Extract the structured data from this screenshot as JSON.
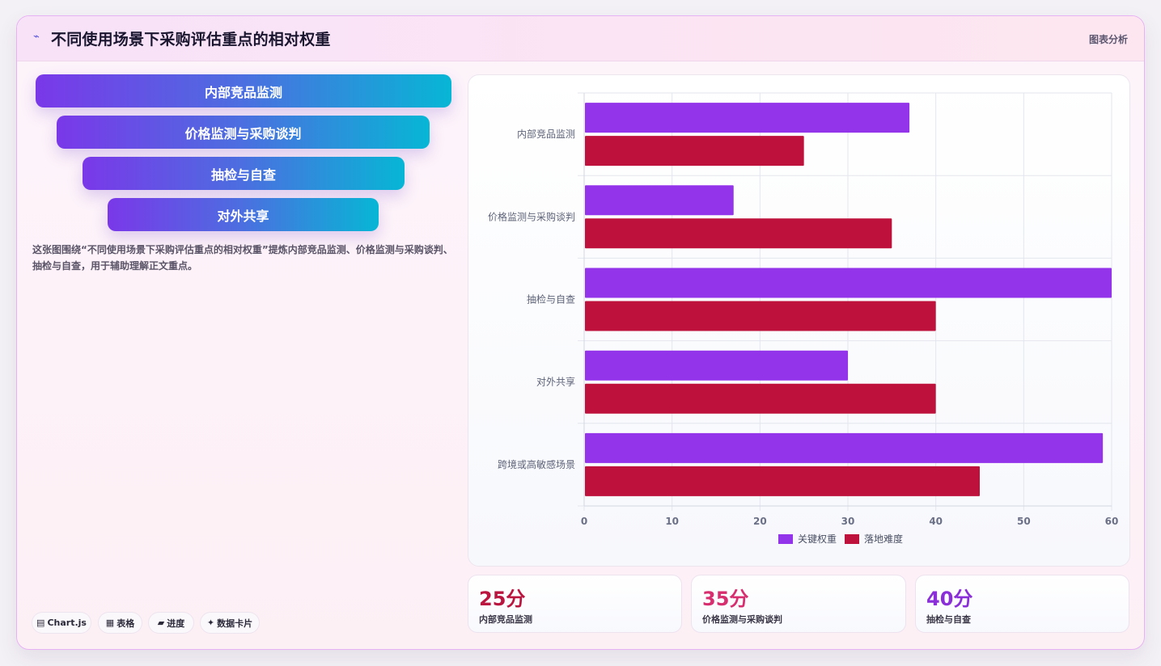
{
  "header": {
    "icon": "chart-line-icon",
    "title": "不同使用场景下采购评估重点的相对权重",
    "tag": "图表分析"
  },
  "funnel": [
    {
      "label": "内部竞品监测"
    },
    {
      "label": "价格监测与采购谈判"
    },
    {
      "label": "抽检与自查"
    },
    {
      "label": "对外共享"
    }
  ],
  "description": "这张图围绕“不同使用场景下采购评估重点的相对权重”提炼内部竞品监测、价格监测与采购谈判、抽检与自查，用于辅助理解正文重点。",
  "pills": [
    {
      "icon": "▤",
      "label": "Chart.js"
    },
    {
      "icon": "▦",
      "label": "表格"
    },
    {
      "icon": "▰",
      "label": "进度"
    },
    {
      "icon": "✦",
      "label": "数据卡片"
    }
  ],
  "stats": [
    {
      "value": "25分",
      "label": "内部竞品监测",
      "color": "#b9153f"
    },
    {
      "value": "35分",
      "label": "价格监测与采购谈判",
      "color": "#d62e6e"
    },
    {
      "value": "40分",
      "label": "抽检与自查",
      "color": "#8a2fd8"
    }
  ],
  "chart_data": {
    "type": "bar",
    "orientation": "horizontal",
    "categories": [
      "内部竞品监测",
      "价格监测与采购谈判",
      "抽检与自查",
      "对外共享",
      "跨境或高敏感场景"
    ],
    "series": [
      {
        "name": "关键权重",
        "values": [
          37,
          17,
          60,
          30,
          59
        ],
        "color": "#9333ea"
      },
      {
        "name": "落地难度",
        "values": [
          25,
          35,
          40,
          40,
          45
        ],
        "color": "#be123c"
      }
    ],
    "xlim": [
      0,
      60
    ],
    "xticks": [
      0,
      10,
      20,
      30,
      40,
      50,
      60
    ],
    "grid": true,
    "legend": "bottom"
  }
}
